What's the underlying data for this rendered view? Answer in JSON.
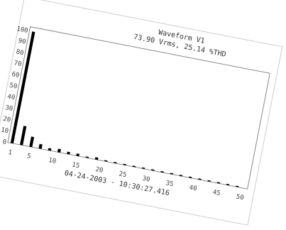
{
  "chart_data": {
    "type": "bar",
    "title": "Waveform V1",
    "subtitle": "73.90 Vrms, 25.14 %THD",
    "footer": "04-24-2003 - 10:30:27.416",
    "xlabel": "",
    "ylabel": "",
    "xlim": [
      1,
      50
    ],
    "ylim": [
      0,
      100
    ],
    "y_ticks": [
      "0",
      "10",
      "20",
      "30",
      "40",
      "50",
      "60",
      "70",
      "80",
      "90",
      "100"
    ],
    "x_ticks": [
      "1",
      "5",
      "10",
      "15",
      "20",
      "25",
      "30",
      "35",
      "40",
      "45",
      "50"
    ],
    "grid": false,
    "categories": [
      1,
      2,
      3,
      4,
      5,
      6,
      7,
      8,
      9,
      10,
      11,
      12,
      13,
      14,
      15,
      16,
      17,
      18,
      19,
      20,
      21,
      22,
      23,
      24,
      25,
      26,
      27,
      28,
      29,
      30,
      31,
      32,
      33,
      34,
      35,
      36,
      37,
      38,
      39,
      40,
      41,
      42,
      43,
      44,
      45,
      46,
      47,
      48,
      49,
      50
    ],
    "values": [
      100,
      0,
      17,
      0,
      9,
      0,
      4,
      0,
      2,
      0,
      3,
      0,
      2,
      0,
      2,
      0,
      1,
      0,
      2,
      0,
      1,
      0,
      1,
      0,
      1,
      0,
      1,
      0,
      1,
      0,
      1,
      0,
      1,
      0,
      1,
      0,
      1,
      0,
      1,
      0,
      1,
      0,
      1,
      0,
      1,
      0,
      1,
      0,
      1,
      0
    ],
    "colors": {
      "bar": "#000000",
      "frame": "#888888",
      "text": "#333333"
    }
  }
}
